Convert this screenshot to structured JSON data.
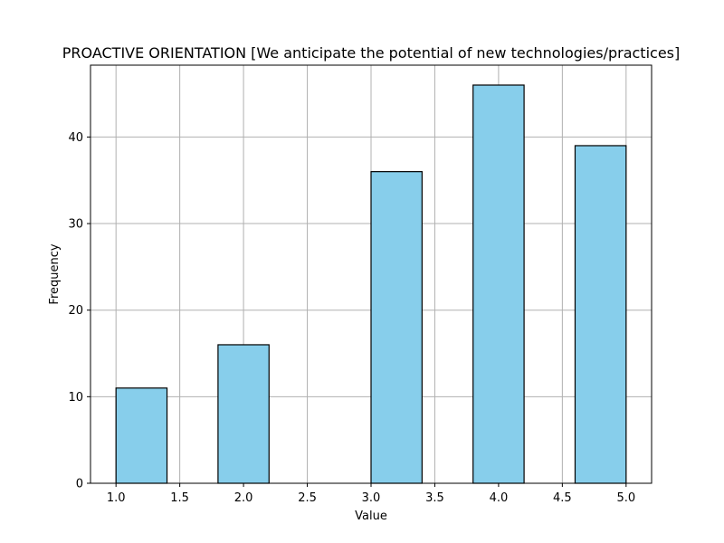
{
  "chart_data": {
    "type": "bar",
    "title": "PROACTIVE ORIENTATION [We anticipate the potential of new technologies/practices]",
    "xlabel": "Value",
    "ylabel": "Frequency",
    "xlim": [
      0.8,
      5.2
    ],
    "ylim": [
      0,
      48.3
    ],
    "xticks": [
      "1.0",
      "1.5",
      "2.0",
      "2.5",
      "3.0",
      "3.5",
      "4.0",
      "4.5",
      "5.0"
    ],
    "yticks": [
      "0",
      "10",
      "20",
      "30",
      "40"
    ],
    "grid": true,
    "bar_color": "#87CEEB",
    "edge_color": "#000000",
    "bins": [
      {
        "x0": 1.0,
        "x1": 1.4,
        "count": 11
      },
      {
        "x0": 1.4,
        "x1": 1.8,
        "count": 0
      },
      {
        "x0": 1.8,
        "x1": 2.2,
        "count": 16
      },
      {
        "x0": 2.2,
        "x1": 2.6,
        "count": 0
      },
      {
        "x0": 2.6,
        "x1": 3.0,
        "count": 0
      },
      {
        "x0": 3.0,
        "x1": 3.4,
        "count": 36
      },
      {
        "x0": 3.4,
        "x1": 3.8,
        "count": 0
      },
      {
        "x0": 3.8,
        "x1": 4.2,
        "count": 46
      },
      {
        "x0": 4.2,
        "x1": 4.6,
        "count": 0
      },
      {
        "x0": 4.6,
        "x1": 5.0,
        "count": 39
      }
    ]
  }
}
